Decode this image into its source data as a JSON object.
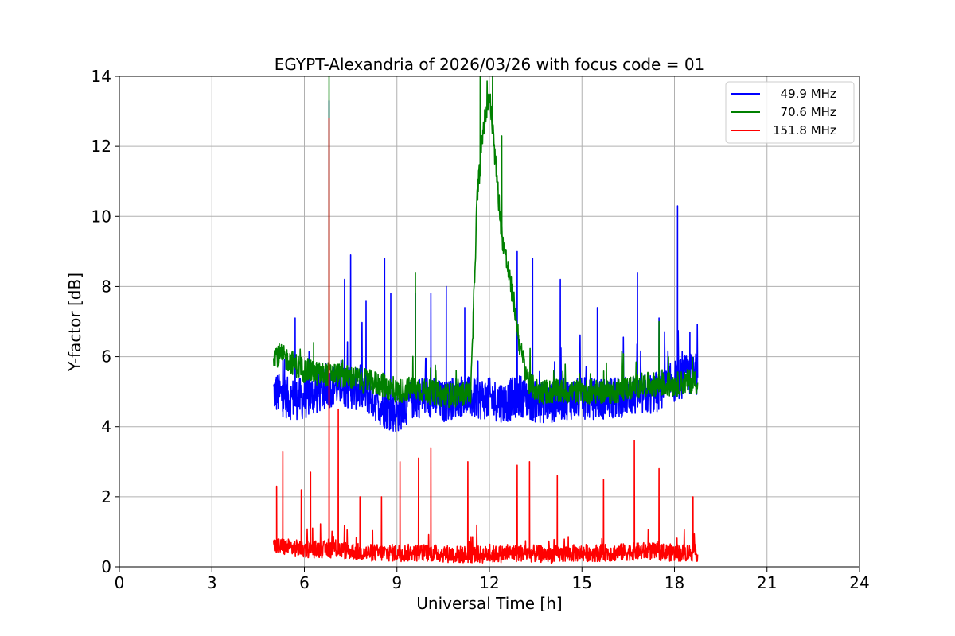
{
  "chart_data": {
    "type": "line",
    "title": "EGYPT-Alexandria of 2026/03/26 with focus code = 01",
    "xlabel": "Universal Time [h]",
    "ylabel": "Y-factor [dB]",
    "xlim": [
      0,
      24
    ],
    "ylim": [
      0,
      14
    ],
    "xticks": [
      0,
      3,
      6,
      9,
      12,
      15,
      18,
      21,
      24
    ],
    "yticks": [
      0,
      2,
      4,
      6,
      8,
      10,
      12,
      14
    ],
    "grid": true,
    "legend_position": "top-right",
    "series": [
      {
        "name": "49.9 MHz",
        "legend_label": "  49.9 MHz",
        "color": "#0000ff",
        "x": [
          5.0,
          5.5,
          6.0,
          6.5,
          7.0,
          7.5,
          8.0,
          8.5,
          9.0,
          9.5,
          10.0,
          10.5,
          11.0,
          11.5,
          12.0,
          12.5,
          13.0,
          13.5,
          14.0,
          14.5,
          15.0,
          15.5,
          16.0,
          16.5,
          17.0,
          17.5,
          18.0,
          18.5,
          18.75
        ],
        "values": [
          5.0,
          4.8,
          4.8,
          5.0,
          5.2,
          5.1,
          5.0,
          4.6,
          4.4,
          4.8,
          4.9,
          4.7,
          4.9,
          4.8,
          4.8,
          4.7,
          4.9,
          4.7,
          4.7,
          4.8,
          4.8,
          4.8,
          4.8,
          4.9,
          4.9,
          5.0,
          5.3,
          5.5,
          5.5
        ],
        "noise": 0.6,
        "spikes": [
          [
            5.3,
            5.9
          ],
          [
            5.7,
            7.1
          ],
          [
            6.8,
            13.3
          ],
          [
            7.3,
            8.2
          ],
          [
            7.5,
            8.9
          ],
          [
            8.0,
            7.6
          ],
          [
            8.6,
            8.8
          ],
          [
            8.8,
            7.8
          ],
          [
            9.6,
            7.8
          ],
          [
            10.1,
            7.8
          ],
          [
            10.6,
            8.0
          ],
          [
            11.2,
            7.4
          ],
          [
            12.9,
            9.0
          ],
          [
            13.4,
            8.8
          ],
          [
            14.3,
            8.2
          ],
          [
            15.5,
            7.4
          ],
          [
            16.8,
            8.4
          ],
          [
            17.5,
            7.1
          ],
          [
            18.1,
            10.3
          ],
          [
            18.5,
            6.7
          ]
        ]
      },
      {
        "name": "70.6 MHz",
        "legend_label": "  70.6 MHz",
        "color": "#008000",
        "x": [
          5.0,
          5.5,
          6.0,
          6.5,
          7.0,
          7.5,
          8.0,
          8.5,
          9.0,
          9.5,
          10.0,
          10.5,
          11.0,
          11.4,
          11.6,
          11.8,
          12.0,
          12.2,
          12.4,
          12.6,
          12.8,
          13.0,
          13.3,
          13.6,
          14.0,
          14.5,
          15.0,
          15.5,
          16.0,
          16.5,
          17.0,
          17.5,
          18.0,
          18.5,
          18.75
        ],
        "values": [
          6.1,
          5.9,
          5.6,
          5.5,
          5.5,
          5.4,
          5.3,
          5.2,
          5.0,
          5.1,
          5.0,
          4.9,
          4.9,
          5.0,
          10.5,
          12.5,
          13.5,
          11.5,
          9.5,
          8.5,
          7.5,
          6.2,
          5.2,
          5.0,
          5.0,
          5.0,
          5.0,
          5.0,
          5.0,
          5.1,
          5.2,
          5.2,
          5.2,
          5.3,
          5.3
        ],
        "noise": 0.35,
        "spikes": [
          [
            6.3,
            6.4
          ],
          [
            6.8,
            14.0
          ],
          [
            9.6,
            8.4
          ],
          [
            11.7,
            14.0
          ],
          [
            12.1,
            14.0
          ],
          [
            12.4,
            12.3
          ],
          [
            17.5,
            7.0
          ]
        ]
      },
      {
        "name": "151.8 MHz",
        "legend_label": "151.8 MHz",
        "color": "#ff0000",
        "x": [
          5.0,
          6.0,
          7.0,
          8.0,
          9.0,
          10.0,
          11.0,
          12.0,
          13.0,
          14.0,
          15.0,
          16.0,
          17.0,
          18.0,
          18.75
        ],
        "values": [
          0.6,
          0.5,
          0.5,
          0.4,
          0.4,
          0.4,
          0.35,
          0.35,
          0.4,
          0.35,
          0.4,
          0.4,
          0.45,
          0.4,
          0.4
        ],
        "noise": 0.25,
        "spikes": [
          [
            5.1,
            2.3
          ],
          [
            5.3,
            3.3
          ],
          [
            5.9,
            2.2
          ],
          [
            6.2,
            2.7
          ],
          [
            6.8,
            12.8
          ],
          [
            7.1,
            4.5
          ],
          [
            7.8,
            2.0
          ],
          [
            8.5,
            2.0
          ],
          [
            9.1,
            3.0
          ],
          [
            9.7,
            3.1
          ],
          [
            10.1,
            3.4
          ],
          [
            11.3,
            3.0
          ],
          [
            12.9,
            2.9
          ],
          [
            13.3,
            3.0
          ],
          [
            14.2,
            2.6
          ],
          [
            15.7,
            2.5
          ],
          [
            16.7,
            3.6
          ],
          [
            17.5,
            2.8
          ],
          [
            18.6,
            2.0
          ]
        ]
      }
    ]
  }
}
